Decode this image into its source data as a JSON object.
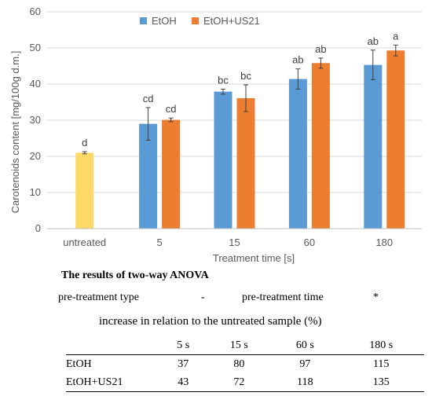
{
  "chart_data": {
    "type": "bar",
    "categories": [
      "untreated",
      "5",
      "15",
      "60",
      "180"
    ],
    "xlabel": "Treatment time [s]",
    "ylabel": "Carotenoids content [mg/100g d.m.]",
    "ylim": [
      0,
      60
    ],
    "yticks": [
      0,
      10,
      20,
      30,
      40,
      50,
      60
    ],
    "legend_position": "top",
    "untreated": {
      "value": 21.0,
      "error": 0.3,
      "label": "d",
      "color": "#FFD966"
    },
    "series": [
      {
        "name": "EtOH",
        "color": "#5B9BD5",
        "values": [
          null,
          29.0,
          37.9,
          41.4,
          45.3
        ],
        "errors": [
          null,
          4.5,
          0.7,
          2.8,
          4.1
        ],
        "labels": [
          "",
          "cd",
          "bc",
          "ab",
          "ab"
        ]
      },
      {
        "name": "EtOH+US21",
        "color": "#ED7D31",
        "values": [
          null,
          30.1,
          36.1,
          45.8,
          49.3
        ],
        "errors": [
          null,
          0.5,
          3.7,
          1.4,
          1.5
        ],
        "labels": [
          "",
          "cd",
          "bc",
          "ab",
          "a"
        ]
      }
    ]
  },
  "anova": {
    "title": "The results of two-way ANOVA",
    "pretreatment_type_label": "pre-treatment type",
    "pretreatment_type_value": "-",
    "pretreatment_time_label": "pre-treatment time",
    "pretreatment_time_value": "*"
  },
  "increase_table": {
    "caption": "increase in relation to the untreated sample (%)",
    "columns": [
      "",
      "5 s",
      "15 s",
      "60 s",
      "180 s"
    ],
    "rows": [
      {
        "label": "EtOH",
        "values": [
          "37",
          "80",
          "97",
          "115"
        ]
      },
      {
        "label": "EtOH+US21",
        "values": [
          "43",
          "72",
          "118",
          "135"
        ]
      }
    ]
  }
}
